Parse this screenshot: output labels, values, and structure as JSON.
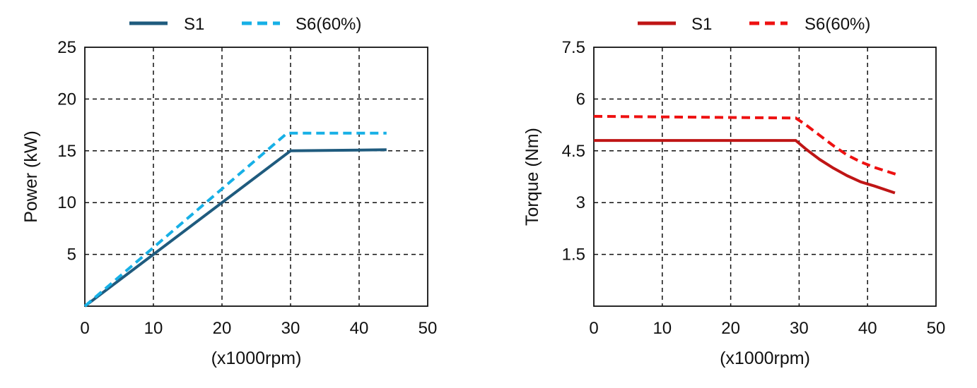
{
  "chart_data": [
    {
      "type": "line",
      "title": "",
      "xlabel": "(x1000rpm)",
      "ylabel": "Power (kW)",
      "xlim": [
        0,
        50
      ],
      "ylim": [
        0,
        25
      ],
      "x_ticks": [
        "0",
        "10",
        "20",
        "30",
        "40",
        "50"
      ],
      "y_ticks": [
        "5",
        "10",
        "15",
        "20",
        "25"
      ],
      "grid": true,
      "legend_position": "top",
      "series": [
        {
          "name": "S1",
          "color": "#1f5b7e",
          "dash": "solid",
          "x": [
            0,
            30,
            44
          ],
          "y": [
            0,
            15,
            15.1
          ]
        },
        {
          "name": "S6(60%)",
          "color": "#17b0e6",
          "dash": "dashed",
          "x": [
            0,
            29.5,
            30,
            44
          ],
          "y": [
            0,
            16.7,
            16.7,
            16.7
          ]
        }
      ]
    },
    {
      "type": "line",
      "title": "",
      "xlabel": "(x1000rpm)",
      "ylabel": "Torque  (Nm)",
      "xlim": [
        0,
        50
      ],
      "ylim": [
        0,
        7.5
      ],
      "x_ticks": [
        "0",
        "10",
        "20",
        "30",
        "40",
        "50"
      ],
      "y_ticks": [
        "1.5",
        "3",
        "4.5",
        "6",
        "7.5"
      ],
      "grid": true,
      "legend_position": "top",
      "series": [
        {
          "name": "S1",
          "color": "#bf1515",
          "dash": "solid",
          "x": [
            0,
            29.5,
            31,
            33,
            35,
            37,
            39,
            41,
            44
          ],
          "y": [
            4.8,
            4.8,
            4.55,
            4.25,
            4.0,
            3.78,
            3.6,
            3.48,
            3.28
          ]
        },
        {
          "name": "S6(60%)",
          "color": "#ee1111",
          "dash": "dashed",
          "x": [
            0,
            29.5,
            31,
            33,
            35,
            37,
            39,
            41,
            44.5
          ],
          "y": [
            5.5,
            5.45,
            5.25,
            4.95,
            4.65,
            4.38,
            4.18,
            4.02,
            3.8
          ]
        }
      ]
    }
  ]
}
